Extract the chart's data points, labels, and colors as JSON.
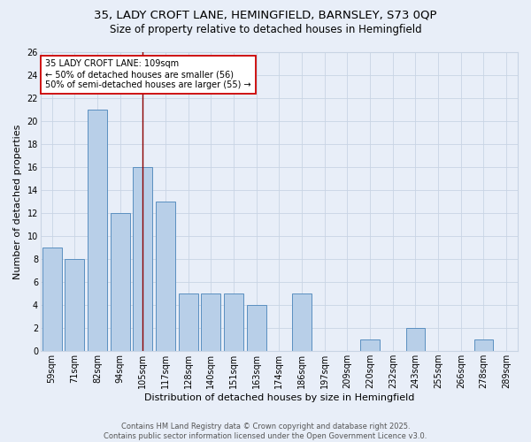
{
  "title_line1": "35, LADY CROFT LANE, HEMINGFIELD, BARNSLEY, S73 0QP",
  "title_line2": "Size of property relative to detached houses in Hemingfield",
  "xlabel": "Distribution of detached houses by size in Hemingfield",
  "ylabel": "Number of detached properties",
  "categories": [
    "59sqm",
    "71sqm",
    "82sqm",
    "94sqm",
    "105sqm",
    "117sqm",
    "128sqm",
    "140sqm",
    "151sqm",
    "163sqm",
    "174sqm",
    "186sqm",
    "197sqm",
    "209sqm",
    "220sqm",
    "232sqm",
    "243sqm",
    "255sqm",
    "266sqm",
    "278sqm",
    "289sqm"
  ],
  "values": [
    9,
    8,
    21,
    12,
    16,
    13,
    5,
    5,
    5,
    4,
    0,
    5,
    0,
    0,
    1,
    0,
    2,
    0,
    0,
    1,
    0
  ],
  "bar_color": "#b8cfe8",
  "bar_edge_color": "#5a8fc0",
  "vline_x_index": 4,
  "vline_color": "#8b0000",
  "annotation_box_text": "35 LADY CROFT LANE: 109sqm\n← 50% of detached houses are smaller (56)\n50% of semi-detached houses are larger (55) →",
  "annotation_box_color": "#ffffff",
  "annotation_box_edge_color": "#cc0000",
  "ylim": [
    0,
    26
  ],
  "yticks": [
    0,
    2,
    4,
    6,
    8,
    10,
    12,
    14,
    16,
    18,
    20,
    22,
    24,
    26
  ],
  "grid_color": "#c8d4e4",
  "background_color": "#e8eef8",
  "footer_text": "Contains HM Land Registry data © Crown copyright and database right 2025.\nContains public sector information licensed under the Open Government Licence v3.0.",
  "title_fontsize": 9.5,
  "subtitle_fontsize": 8.5,
  "axis_label_fontsize": 8,
  "tick_fontsize": 7,
  "annotation_fontsize": 7,
  "footer_fontsize": 6
}
